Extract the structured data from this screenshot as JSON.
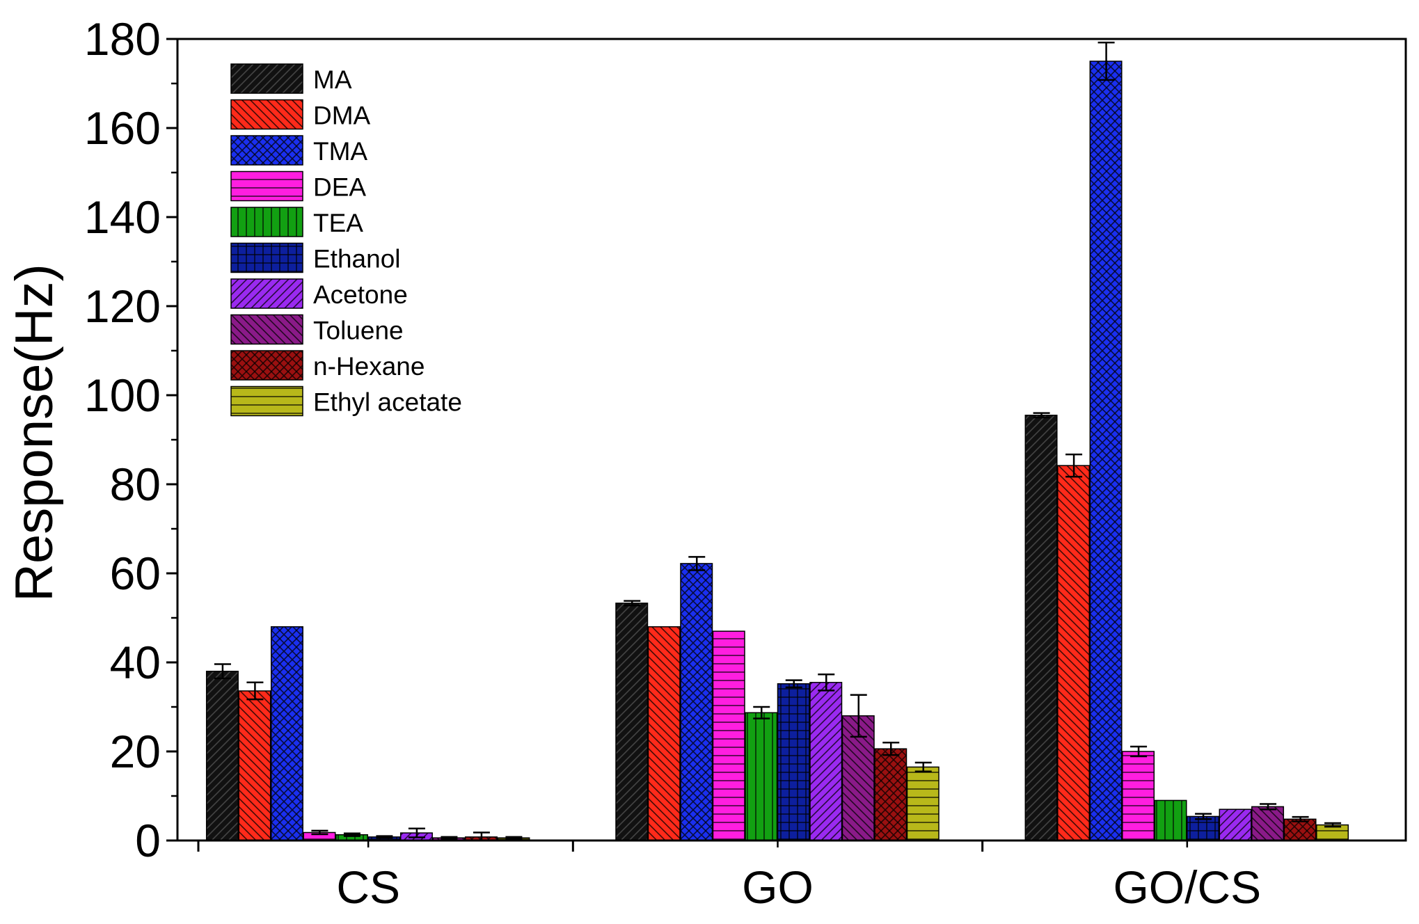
{
  "chart_data": {
    "type": "bar",
    "title": "",
    "xlabel": "",
    "ylabel": "Response(Hz)",
    "ylim": [
      0,
      180
    ],
    "yticks": [
      0,
      20,
      40,
      60,
      80,
      100,
      120,
      140,
      160,
      180
    ],
    "grid": false,
    "legend_position": "top-left",
    "categories": [
      "CS",
      "GO",
      "GO/CS"
    ],
    "series": [
      {
        "name": "MA",
        "color": "#111111",
        "pattern": "diag-dark",
        "values": [
          38.0,
          53.3,
          95.5
        ],
        "errors": [
          1.6,
          0.5,
          0.5
        ]
      },
      {
        "name": "DMA",
        "color": "#ff2a1a",
        "pattern": "diag-back",
        "values": [
          33.6,
          48.0,
          84.2
        ],
        "errors": [
          1.9,
          0,
          2.5
        ]
      },
      {
        "name": "TMA",
        "color": "#1a2ff0",
        "pattern": "crosshatch",
        "values": [
          48.0,
          62.2,
          175.0
        ],
        "errors": [
          0,
          1.5,
          4.2
        ]
      },
      {
        "name": "DEA",
        "color": "#ff1ee0",
        "pattern": "horizontal",
        "values": [
          1.8,
          47.0,
          20.0
        ],
        "errors": [
          0.4,
          0,
          1.1
        ]
      },
      {
        "name": "TEA",
        "color": "#12a012",
        "pattern": "vertical",
        "values": [
          1.3,
          28.7,
          9.0
        ],
        "errors": [
          0.3,
          1.3,
          0
        ]
      },
      {
        "name": "Ethanol",
        "color": "#0d1f9e",
        "pattern": "grid",
        "values": [
          0.8,
          35.2,
          5.4
        ],
        "errors": [
          0.2,
          0.8,
          0.6
        ]
      },
      {
        "name": "Acetone",
        "color": "#9a2af0",
        "pattern": "diag",
        "values": [
          1.7,
          35.5,
          7.0
        ],
        "errors": [
          1.0,
          1.8,
          0
        ]
      },
      {
        "name": "Toluene",
        "color": "#8a1a88",
        "pattern": "diag-back",
        "values": [
          0.6,
          28.0,
          7.6
        ],
        "errors": [
          0.2,
          4.7,
          0.6
        ]
      },
      {
        "name": "n-Hexane",
        "color": "#9a1010",
        "pattern": "crosshatch",
        "values": [
          0.8,
          20.6,
          4.8
        ],
        "errors": [
          1.0,
          1.4,
          0.5
        ]
      },
      {
        "name": "Ethyl acetate",
        "color": "#b8b81a",
        "pattern": "horizontal",
        "values": [
          0.6,
          16.5,
          3.5
        ],
        "errors": [
          0.2,
          1.0,
          0.4
        ]
      }
    ]
  }
}
